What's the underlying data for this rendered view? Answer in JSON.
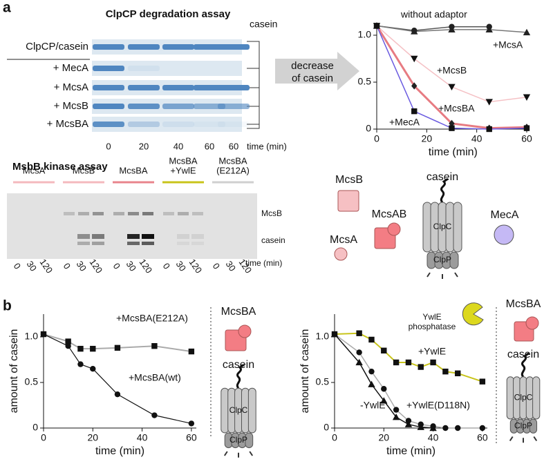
{
  "panel_labels": [
    "a",
    "b"
  ],
  "degradation_assay": {
    "title": "ClpCP degradation assay",
    "band_label": "casein",
    "rows": [
      "ClpCP/casein",
      "+ MecA",
      "+ McsA",
      "+ McsB",
      "+ McsBA"
    ],
    "lanes": [
      "0",
      "20",
      "40",
      "60",
      "60"
    ],
    "lane_unit": "time (min)"
  },
  "arrow_label": [
    "decrease",
    "of casein"
  ],
  "kinase_assay": {
    "title": "MsbB kinase assay",
    "groups": [
      [
        "McsA"
      ],
      [
        "McsB"
      ],
      [
        "McsBA"
      ],
      [
        "McsBA",
        "+YwlE"
      ],
      [
        "McsBA",
        "(E212A)"
      ]
    ],
    "group_colors": [
      "#f4b9be",
      "#f4b9be",
      "#e8848c",
      "#c8c41a",
      "#cfcfcf"
    ],
    "bands": [
      "McsB",
      "casein"
    ],
    "lanes": [
      "0",
      "30",
      "120",
      "0",
      "30",
      "120",
      "0",
      "30",
      "120",
      "0",
      "30",
      "120",
      "0",
      "30",
      "120"
    ],
    "lane_unit": "time (min)"
  },
  "diagram_a": [
    "McsB",
    "McsAB",
    "McsA",
    "MecA",
    "casein",
    "ClpC",
    "ClpP"
  ],
  "diagram_b1": [
    "McsBA",
    "casein",
    "ClpC",
    "ClpP"
  ],
  "diagram_b2": [
    "YwlE",
    "phosphatase",
    "McsBA",
    "casein",
    "ClpC",
    "ClpP"
  ],
  "chart_data": [
    {
      "type": "line",
      "xlabel": "time (min)",
      "xlim": [
        0,
        61
      ],
      "ylim": [
        0,
        1.1
      ],
      "xticks": [
        0,
        20,
        40,
        60
      ],
      "yticks": [
        0,
        0.5,
        {
          "value": 1,
          "label": "1.0"
        }
      ],
      "series": [
        {
          "name": "without adaptor",
          "color": "#555555",
          "marker": "circle",
          "marker_color": "#222222",
          "width": 1.5,
          "x": [
            0,
            15,
            30,
            45
          ],
          "values": [
            1.1,
            1.05,
            1.09,
            1.09
          ]
        },
        {
          "name": "+McsA",
          "color": "#777777",
          "marker": "triangle",
          "marker_color": "#222222",
          "width": 1.5,
          "x": [
            0,
            15,
            30,
            45,
            60
          ],
          "values": [
            1.1,
            1.04,
            1.06,
            1.06,
            1.03
          ]
        },
        {
          "name": "+McsB",
          "color": "#f5c1c5",
          "marker": "triangle-down",
          "marker_color": "#111111",
          "width": 1.5,
          "x": [
            0,
            15,
            30,
            45,
            60
          ],
          "values": [
            1.1,
            0.75,
            0.45,
            0.29,
            0.34
          ]
        },
        {
          "name": "+McsBA",
          "color": "#e77b82",
          "marker": "diamond",
          "marker_color": "#222222",
          "width": 3,
          "x": [
            0,
            15,
            30,
            45,
            60
          ],
          "values": [
            1.1,
            0.46,
            0.06,
            0.01,
            0.02
          ]
        },
        {
          "name": "+MecA",
          "color": "#6a5ae0",
          "marker": "square",
          "marker_color": "#111111",
          "width": 1.5,
          "x": [
            0,
            15,
            30,
            45,
            60
          ],
          "values": [
            1.1,
            0.19,
            0.01,
            0,
            0.01
          ]
        }
      ]
    },
    {
      "type": "line",
      "xlabel": "time (min)",
      "ylabel": "amount of casein",
      "xlim": [
        0,
        62
      ],
      "ylim": [
        0,
        1.25
      ],
      "xticks": [
        0,
        20,
        40,
        60
      ],
      "yticks": [
        0,
        0.5,
        {
          "value": 1,
          "label": "1.0"
        }
      ],
      "series": [
        {
          "name": "+McsBA(E212A)",
          "color": "#aaaaaa",
          "marker": "square",
          "marker_color": "#111111",
          "width": 2,
          "x": [
            0,
            10,
            15,
            20,
            30,
            45,
            60
          ],
          "values": [
            1.03,
            0.95,
            0.87,
            0.87,
            0.88,
            0.9,
            0.84
          ]
        },
        {
          "name": "+McsBA(wt)",
          "color": "#111111",
          "marker": "circle",
          "marker_color": "#111111",
          "width": 1.2,
          "x": [
            0,
            10,
            15,
            20,
            30,
            45,
            60
          ],
          "values": [
            1.03,
            0.9,
            0.7,
            0.65,
            0.37,
            0.14,
            0.05
          ]
        }
      ]
    },
    {
      "type": "line",
      "xlabel": "time (min)",
      "ylabel": "amount of casein",
      "xlim": [
        0,
        62
      ],
      "ylim": [
        0,
        1.25
      ],
      "xticks": [
        0,
        20,
        40,
        60
      ],
      "yticks": [
        0,
        0.5,
        {
          "value": 1,
          "label": "1.0"
        }
      ],
      "series": [
        {
          "name": "+YwlE",
          "color": "#c8c41a",
          "marker": "square",
          "marker_color": "#111111",
          "width": 2,
          "x": [
            0,
            10,
            15,
            20,
            25,
            30,
            35,
            40,
            45,
            50,
            60
          ],
          "values": [
            1.03,
            1.04,
            0.97,
            0.85,
            0.72,
            0.72,
            0.67,
            0.72,
            0.62,
            0.6,
            0.51
          ]
        },
        {
          "name": "-YwlE",
          "color": "#111111",
          "marker": "triangle",
          "marker_color": "#111111",
          "width": 1.5,
          "x": [
            0,
            10,
            15,
            20,
            25,
            30,
            35,
            40
          ],
          "values": [
            1.03,
            0.72,
            0.48,
            0.3,
            0.12,
            0.04,
            0.01,
            0
          ]
        },
        {
          "name": "+YwlE(D118N)",
          "color": "#aaaaaa",
          "marker": "circle",
          "marker_color": "#111111",
          "width": 1.5,
          "x": [
            0,
            10,
            15,
            20,
            25,
            30,
            35,
            40,
            45,
            50,
            60
          ],
          "values": [
            1.03,
            0.83,
            0.62,
            0.43,
            0.2,
            0.08,
            0.04,
            0.02,
            0,
            0,
            0
          ]
        }
      ]
    }
  ]
}
